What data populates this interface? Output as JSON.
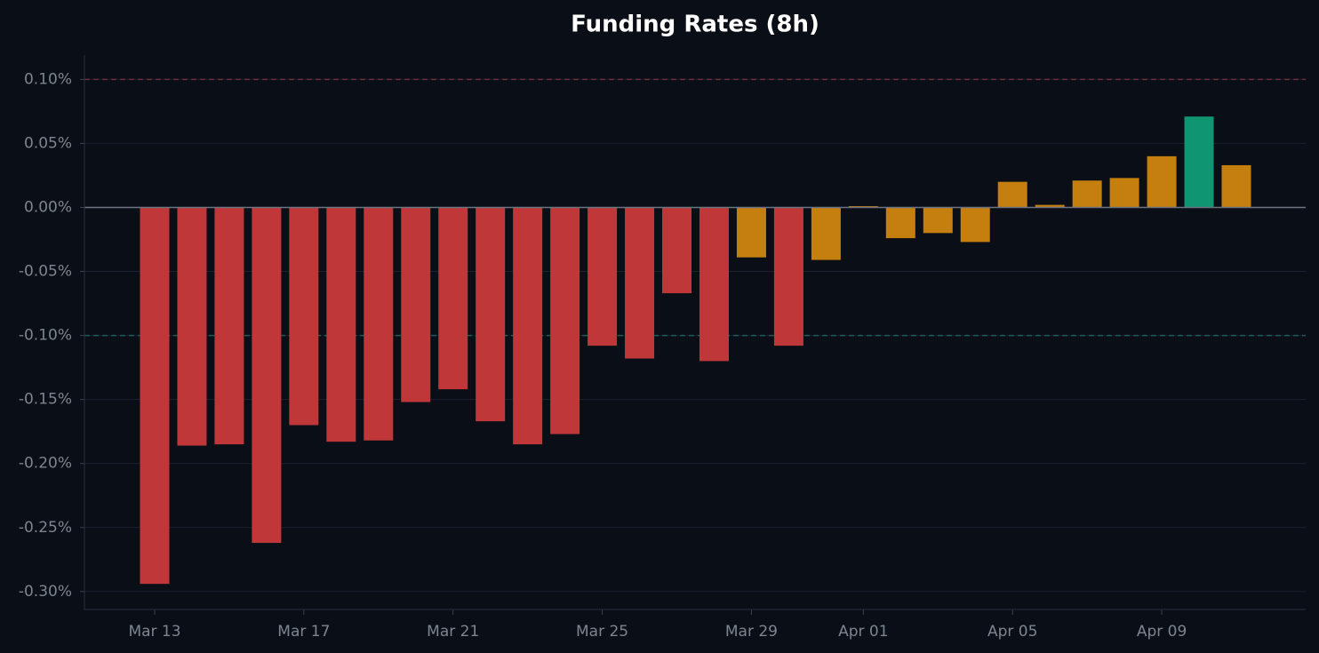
{
  "chart_data": {
    "type": "bar",
    "title": "Funding Rates (8h)",
    "categories": [
      "Mar 13",
      null,
      null,
      null,
      "Mar 17",
      null,
      null,
      null,
      "Mar 21",
      null,
      null,
      null,
      "Mar 25",
      null,
      null,
      null,
      "Mar 29",
      null,
      null,
      "Apr 01",
      null,
      null,
      null,
      "Apr 05",
      null,
      null,
      null,
      "Apr 09",
      null,
      null
    ],
    "values": [
      -0.294,
      -0.186,
      -0.185,
      -0.262,
      -0.17,
      -0.183,
      -0.182,
      -0.152,
      -0.142,
      -0.167,
      -0.185,
      -0.177,
      -0.108,
      -0.118,
      -0.067,
      -0.12,
      -0.039,
      -0.108,
      -0.041,
      0.001,
      -0.024,
      -0.02,
      -0.027,
      0.02,
      0.002,
      0.021,
      0.023,
      0.04,
      0.071,
      0.033
    ],
    "colors": [
      "#c0373a",
      "#c0373a",
      "#c0373a",
      "#c0373a",
      "#c0373a",
      "#c0373a",
      "#c0373a",
      "#c0373a",
      "#c0373a",
      "#c0373a",
      "#c0373a",
      "#c0373a",
      "#c0373a",
      "#c0373a",
      "#c0373a",
      "#c0373a",
      "#c47f0e",
      "#c0373a",
      "#c47f0e",
      "#c47f0e",
      "#c47f0e",
      "#c47f0e",
      "#c47f0e",
      "#c47f0e",
      "#c47f0e",
      "#c47f0e",
      "#c47f0e",
      "#c47f0e",
      "#0f9570",
      "#c47f0e"
    ],
    "ylim": [
      -0.314,
      0.119
    ],
    "yticks": [
      {
        "value": 0.1,
        "label": "0.10%"
      },
      {
        "value": 0.05,
        "label": "0.05%"
      },
      {
        "value": 0,
        "label": "0.00%"
      },
      {
        "value": -0.05,
        "label": "-0.05%"
      },
      {
        "value": -0.1,
        "label": "-0.10%"
      },
      {
        "value": -0.15,
        "label": "-0.15%"
      },
      {
        "value": -0.2,
        "label": "-0.20%"
      },
      {
        "value": -0.25,
        "label": "-0.25%"
      },
      {
        "value": -0.3,
        "label": "-0.30%"
      }
    ],
    "reference_lines": [
      {
        "value": 0.1,
        "color": "#6b2b3a"
      },
      {
        "value": -0.1,
        "color": "#1d5b5a"
      }
    ],
    "grid": true
  }
}
